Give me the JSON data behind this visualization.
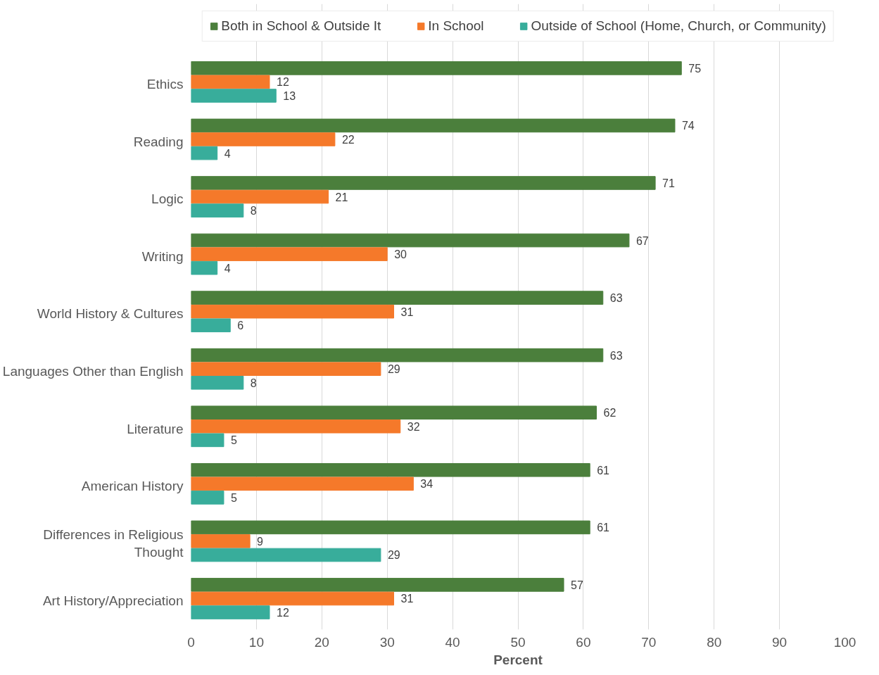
{
  "chart_data": {
    "type": "bar",
    "orientation": "horizontal",
    "xlabel": "Percent",
    "categories": [
      "Ethics",
      "Reading",
      "Logic",
      "Writing",
      "World History & Cultures",
      "Languages Other than English",
      "Literature",
      "American History",
      "Differences in Religious Thought",
      "Art History/Appreciation"
    ],
    "series": [
      {
        "name": "Both in School & Outside It",
        "color": "#4b7f3c",
        "values": [
          75,
          74,
          71,
          67,
          63,
          63,
          62,
          61,
          61,
          57
        ]
      },
      {
        "name": "In School",
        "color": "#f5792a",
        "values": [
          12,
          22,
          21,
          30,
          31,
          29,
          32,
          34,
          9,
          31
        ]
      },
      {
        "name": "Outside of School (Home, Church, or Community)",
        "color": "#38ad9b",
        "values": [
          13,
          4,
          8,
          4,
          6,
          8,
          5,
          5,
          29,
          12
        ]
      }
    ],
    "xlim": [
      0,
      100
    ],
    "xticks": [
      0,
      10,
      20,
      30,
      40,
      50,
      60,
      70,
      80,
      90,
      100
    ],
    "grid": "x",
    "legend": "top",
    "data_labels": true
  }
}
